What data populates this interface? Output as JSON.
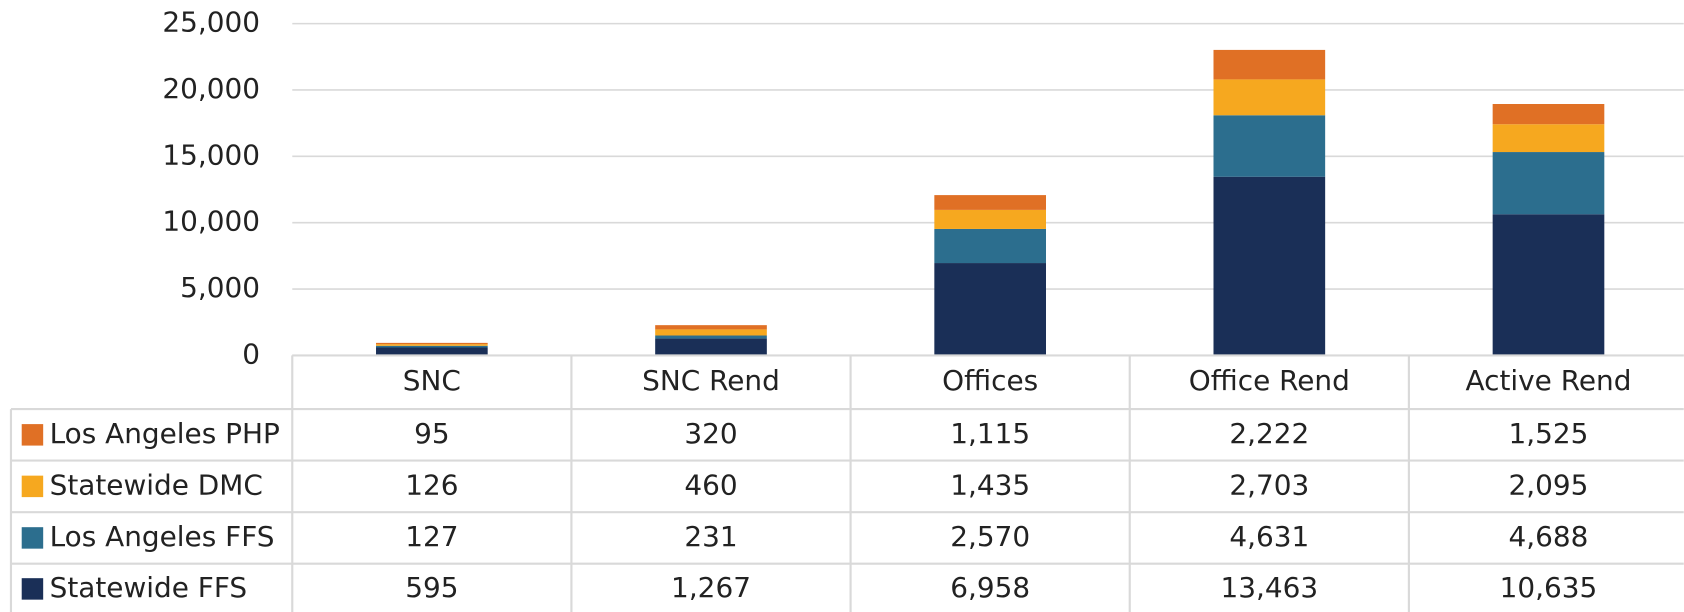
{
  "chart_data": {
    "type": "stacked_bar",
    "categories": [
      "SNC",
      "SNC Rend",
      "Offices",
      "Office Rend",
      "Active Rend"
    ],
    "series": [
      {
        "name": "Los Angeles PHP",
        "color": "#e07025",
        "values": [
          95,
          320,
          1115,
          2222,
          1525
        ],
        "value_labels": [
          "95",
          "320",
          "1,115",
          "2,222",
          "1,525"
        ]
      },
      {
        "name": "Statewide DMC",
        "color": "#f6a81f",
        "values": [
          126,
          460,
          1435,
          2703,
          2095
        ],
        "value_labels": [
          "126",
          "460",
          "1,435",
          "2,703",
          "2,095"
        ]
      },
      {
        "name": "Los Angeles FFS",
        "color": "#2c6e8e",
        "values": [
          127,
          231,
          2570,
          4631,
          4688
        ],
        "value_labels": [
          "127",
          "231",
          "2,570",
          "4,631",
          "4,688"
        ]
      },
      {
        "name": "Statewide FFS",
        "color": "#1a2f57",
        "values": [
          595,
          1267,
          6958,
          13463,
          10635
        ],
        "value_labels": [
          "595",
          "1,267",
          "6,958",
          "13,463",
          "10,635"
        ]
      }
    ],
    "ylim": [
      0,
      25000
    ],
    "yticks": [
      0,
      {
        "value": 5000,
        "label": "5,000"
      },
      {
        "value": 10000,
        "label": "10,000"
      },
      {
        "value": 15000,
        "label": "15,000"
      },
      {
        "value": 20000,
        "label": "20,000"
      },
      {
        "value": 25000,
        "label": "25,000"
      }
    ],
    "grid": true,
    "legend": "table"
  }
}
